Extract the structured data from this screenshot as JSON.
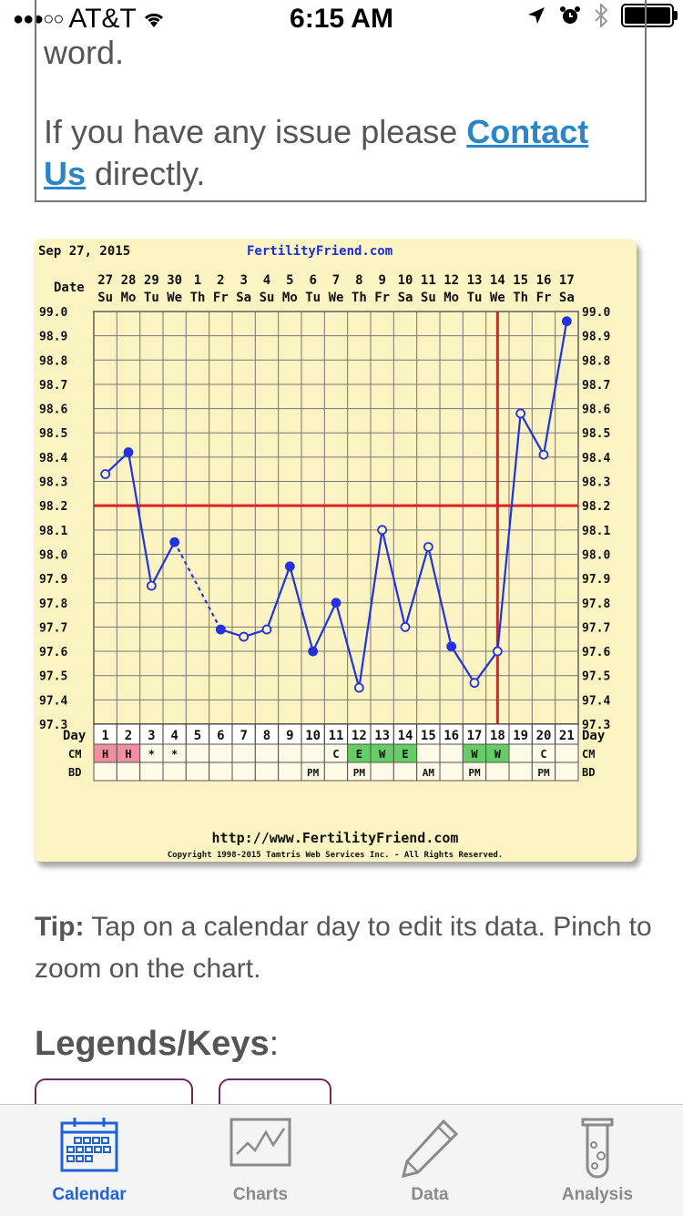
{
  "status_bar": {
    "signal": "●●●○○",
    "carrier": "AT&T",
    "time": "6:15 AM"
  },
  "notice": {
    "clipped_text": "word.",
    "message_prefix": "If you have any issue please ",
    "contact_link": "Contact Us",
    "message_suffix": " directly."
  },
  "chart": {
    "date": "Sep 27, 2015",
    "site": "FertilityFriend.com",
    "url": "http://www.FertilityFriend.com",
    "copyright": "Copyright 1998-2015 Tamtris Web Services Inc. - All Rights Reserved.",
    "row_labels": {
      "date": "Date",
      "day": "Day",
      "cm": "CM",
      "bd": "BD"
    }
  },
  "chart_data": {
    "type": "line",
    "x_dates": [
      "27",
      "28",
      "29",
      "30",
      "1",
      "2",
      "3",
      "4",
      "5",
      "6",
      "7",
      "8",
      "9",
      "10",
      "11",
      "12",
      "13",
      "14",
      "15",
      "16",
      "17"
    ],
    "x_weekdays": [
      "Su",
      "Mo",
      "Tu",
      "We",
      "Th",
      "Fr",
      "Sa",
      "Su",
      "Mo",
      "Tu",
      "We",
      "Th",
      "Fr",
      "Sa",
      "Su",
      "Mo",
      "Tu",
      "We",
      "Th",
      "Fr",
      "Sa"
    ],
    "cycle_days": [
      "1",
      "2",
      "3",
      "4",
      "5",
      "6",
      "7",
      "8",
      "9",
      "10",
      "11",
      "12",
      "13",
      "14",
      "15",
      "16",
      "17",
      "18",
      "19",
      "20",
      "21"
    ],
    "y_ticks": [
      "99.0",
      "98.9",
      "98.8",
      "98.7",
      "98.6",
      "98.5",
      "98.4",
      "98.3",
      "98.2",
      "98.1",
      "98.0",
      "97.9",
      "97.8",
      "97.7",
      "97.6",
      "97.5",
      "97.4",
      "97.3"
    ],
    "ylim": [
      97.3,
      99.0
    ],
    "temperatures": [
      98.33,
      98.42,
      97.87,
      98.05,
      null,
      97.69,
      97.66,
      97.69,
      97.95,
      97.6,
      97.8,
      97.45,
      98.1,
      97.7,
      98.03,
      97.62,
      97.47,
      97.6,
      98.58,
      98.41,
      98.96
    ],
    "filled_points": [
      false,
      true,
      false,
      true,
      null,
      true,
      false,
      false,
      true,
      true,
      true,
      false,
      false,
      false,
      false,
      true,
      false,
      false,
      false,
      false,
      true
    ],
    "dotted_segment": [
      4,
      6
    ],
    "coverline": 98.2,
    "ovulation_day": 18,
    "series_color": "#2233dd",
    "line_color": "#e02020",
    "cm": [
      "H",
      "H",
      "*",
      "*",
      "",
      "",
      "",
      "",
      "",
      "",
      "C",
      "E",
      "W",
      "E",
      "",
      "",
      "W",
      "W",
      "",
      "C",
      ""
    ],
    "cm_colors": [
      "#f08fa0",
      "#f08fa0",
      "",
      "",
      "",
      "",
      "",
      "",
      "",
      "",
      "",
      "#66cc66",
      "#66cc66",
      "#66cc66",
      "",
      "",
      "#66cc66",
      "#66cc66",
      "",
      "",
      ""
    ],
    "bd": [
      "",
      "",
      "",
      "",
      "",
      "",
      "",
      "",
      "",
      "PM",
      "",
      "PM",
      "",
      "",
      "AM",
      "",
      "PM",
      "",
      "",
      "PM",
      ""
    ]
  },
  "tip": {
    "label": "Tip:",
    "text": " Tap on a calendar day to edit its data. Pinch to zoom on the chart."
  },
  "legends": {
    "title": "Legends/Keys",
    "colon": ":"
  },
  "tabs": [
    {
      "label": "Calendar",
      "icon": "calendar-icon",
      "active": true
    },
    {
      "label": "Charts",
      "icon": "chart-icon",
      "active": false
    },
    {
      "label": "Data",
      "icon": "pencil-icon",
      "active": false
    },
    {
      "label": "Analysis",
      "icon": "test-tube-icon",
      "active": false
    }
  ],
  "colors": {
    "accent": "#1f62d6",
    "link": "#2b86c8",
    "chart_bg": "#fbf3c1"
  }
}
